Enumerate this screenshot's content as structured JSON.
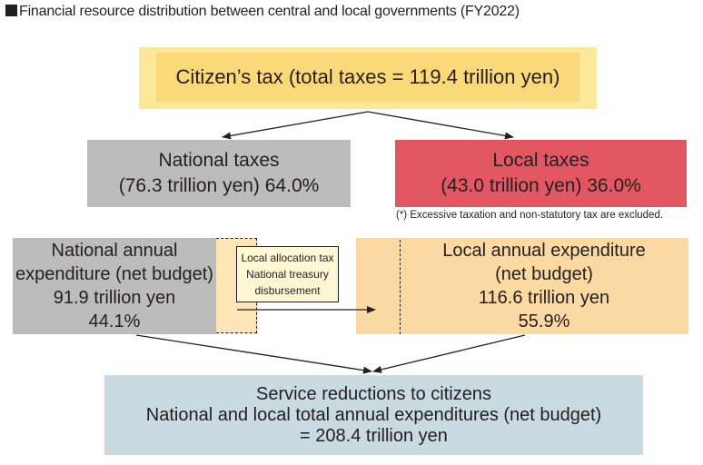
{
  "title": "Financial resource distribution between central and local governments (FY2022)",
  "citizen_tax": "Citizen’s tax (total taxes = 119.4 trillion yen)",
  "national_taxes": {
    "line1": "National taxes",
    "line2": "(76.3 trillion yen)  64.0%"
  },
  "local_taxes": {
    "line1": "Local taxes",
    "line2": "(43.0 trillion yen)  36.0%"
  },
  "note": "(*) Excessive taxation and non-statutory tax are excluded.",
  "national_expenditure": {
    "line1": "National annual",
    "line2": "expenditure (net budget)",
    "line3": "91.9 trillion yen",
    "line4": "44.1%"
  },
  "allocation": {
    "line1": "Local allocation tax",
    "line2": "National treasury",
    "line3": "disbursement"
  },
  "local_expenditure": {
    "line1": "Local annual expenditure",
    "line2": "(net budget)",
    "line3": "116.6 trillion yen",
    "line4": "55.9%"
  },
  "service": {
    "line1": "Service reductions to citizens",
    "line2": "National and local total annual expenditures (net budget)",
    "line3": "= 208.4 trillion yen"
  }
}
